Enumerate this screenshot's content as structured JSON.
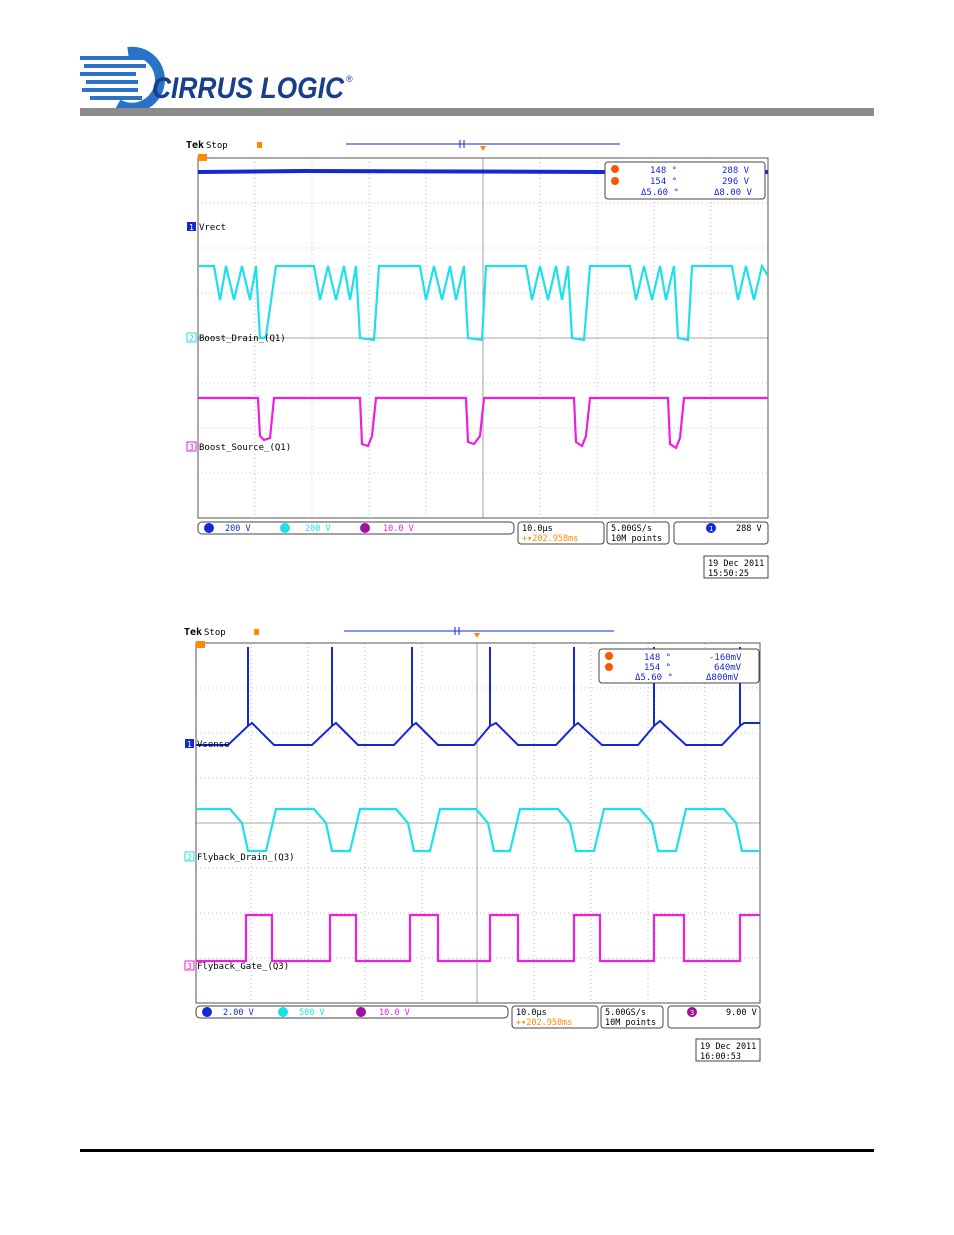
{
  "brand": {
    "name": "CIRRUS LOGIC",
    "registered": "®"
  },
  "colors": {
    "ch1": "#1428d8",
    "ch2": "#1ee0e8",
    "ch3": "#ee1ee0",
    "trigger": "#ff8a00",
    "grid": "#8a8a8a"
  },
  "scopes": [
    {
      "tek": "Tek",
      "state": "Stop",
      "cursor_a": {
        "pos": "148 °",
        "val": "288 V"
      },
      "cursor_b": {
        "pos": "154 °",
        "val": "296 V"
      },
      "cursor_delta": {
        "pos": "Δ5.60 °",
        "val": "Δ8.00 V"
      },
      "channels": [
        {
          "num": "1",
          "label": "Vrect"
        },
        {
          "num": "2",
          "label": "Boost_Drain_(Q1)"
        },
        {
          "num": "3",
          "label": "Boost_Source_(Q1)"
        }
      ],
      "readout": {
        "ch1_scale": "200 V",
        "ch2_scale": "200 V",
        "ch3_scale": "10.0 V",
        "timebase": "10.0µs",
        "position": "+▾202.958ms",
        "sample_rate": "5.00GS/s",
        "record": "10M points",
        "trigger_ch": "1",
        "trigger_level": "288 V"
      },
      "date": "19 Dec 2011",
      "time": "15:50:25"
    },
    {
      "tek": "Tek",
      "state": "Stop",
      "cursor_a": {
        "pos": "148 °",
        "val": "-160mV"
      },
      "cursor_b": {
        "pos": "154 °",
        "val": "640mV"
      },
      "cursor_delta": {
        "pos": "Δ5.60 °",
        "val": "Δ800mV"
      },
      "channels": [
        {
          "num": "1",
          "label": "Vsense"
        },
        {
          "num": "2",
          "label": "Flyback_Drain_(Q3)"
        },
        {
          "num": "3",
          "label": "Flyback_Gate_(Q3)"
        }
      ],
      "readout": {
        "ch1_scale": "2.00 V",
        "ch2_scale": "500 V",
        "ch3_scale": "10.0 V",
        "timebase": "10.0µs",
        "position": "+▾202.958ms",
        "sample_rate": "5.00GS/s",
        "record": "10M points",
        "trigger_ch": "3",
        "trigger_level": "9.00 V"
      },
      "date": "19 Dec 2011",
      "time": "16:00:53"
    }
  ]
}
